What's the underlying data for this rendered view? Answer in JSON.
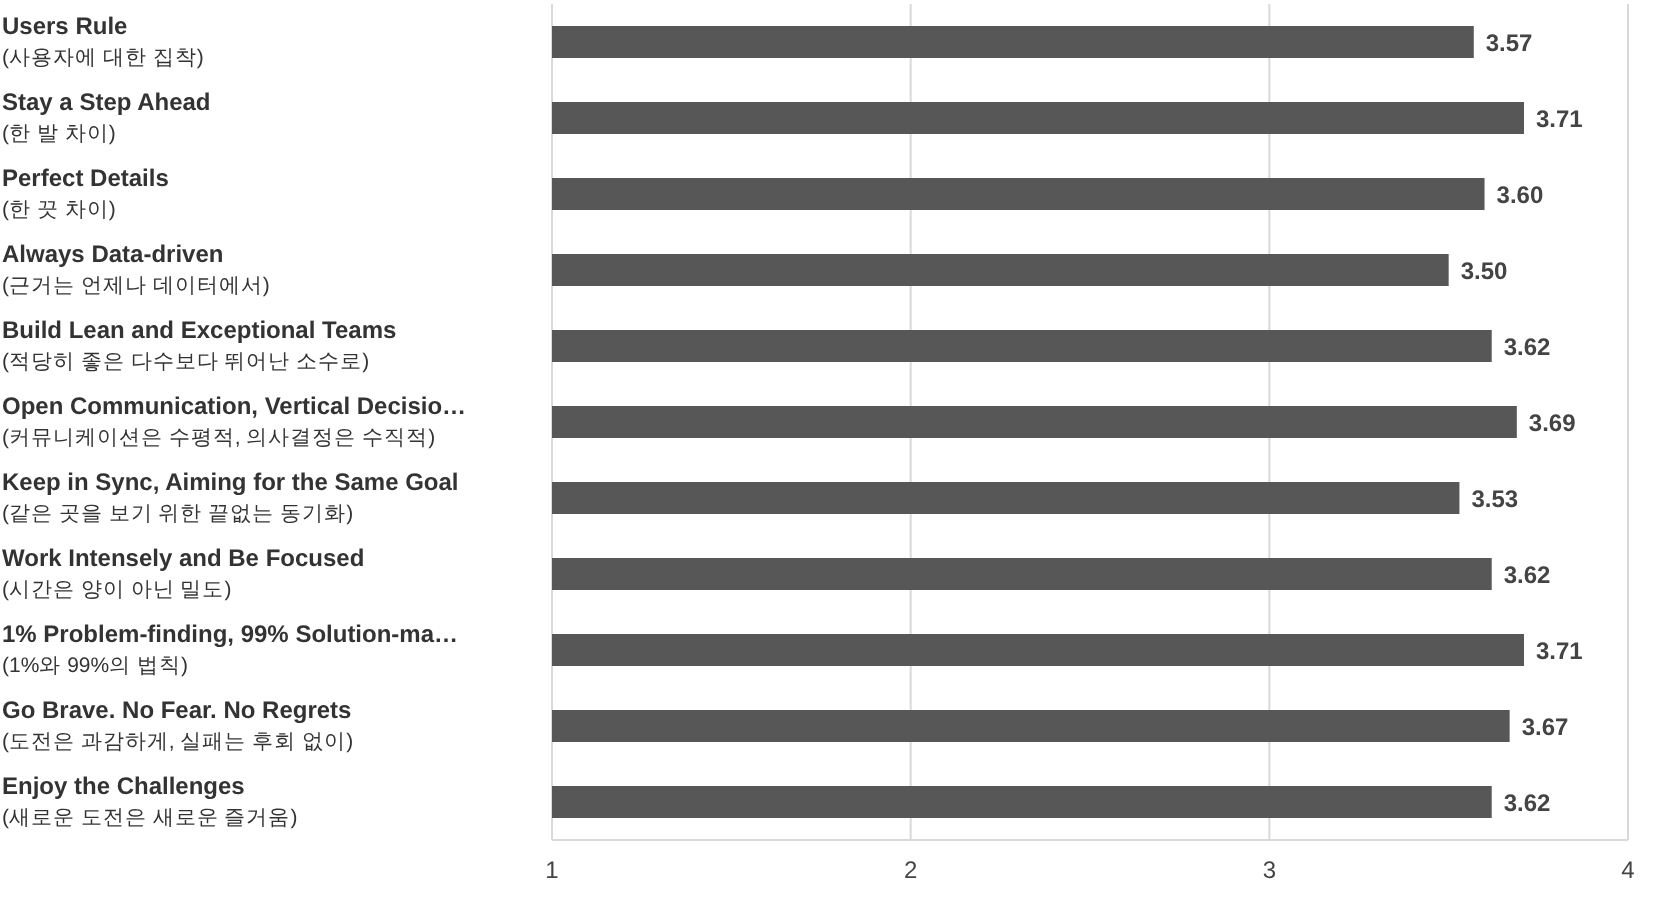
{
  "chart_data": {
    "type": "bar",
    "orientation": "horizontal",
    "categories": [
      "Users Rule\n(사용자에 대한 집착)",
      "Stay a Step Ahead\n(한 발 차이)",
      "Perfect Details\n(한 끗 차이)",
      "Always Data-driven\n(근거는 언제나 데이터에서)",
      "Build Lean and Exceptional Teams\n(적당히 좋은 다수보다 뛰어난 소수로)",
      "Open Communication, Vertical Decisio…\n(커뮤니케이션은 수평적, 의사결정은 수직적)",
      "Keep in Sync, Aiming for the Same Goal\n(같은 곳을 보기 위한 끝없는 동기화)",
      "Work Intensely and Be Focused\n(시간은 양이 아닌 밀도)",
      "1% Problem-finding, 99% Solution-ma…\n(1%와 99%의 법칙)",
      "Go Brave. No Fear. No Regrets\n(도전은 과감하게, 실패는 후회 없이)",
      "Enjoy the Challenges\n(새로운 도전은 새로운 즐거움)"
    ],
    "values": [
      3.57,
      3.71,
      3.6,
      3.5,
      3.62,
      3.69,
      3.53,
      3.62,
      3.71,
      3.67,
      3.62
    ],
    "value_labels": [
      "3.57",
      "3.71",
      "3.60",
      "3.50",
      "3.62",
      "3.69",
      "3.53",
      "3.62",
      "3.71",
      "3.67",
      "3.62"
    ],
    "color": "#575757",
    "xlim": [
      1,
      4
    ],
    "xticks": [
      1,
      2,
      3,
      4
    ],
    "grid": "x"
  }
}
